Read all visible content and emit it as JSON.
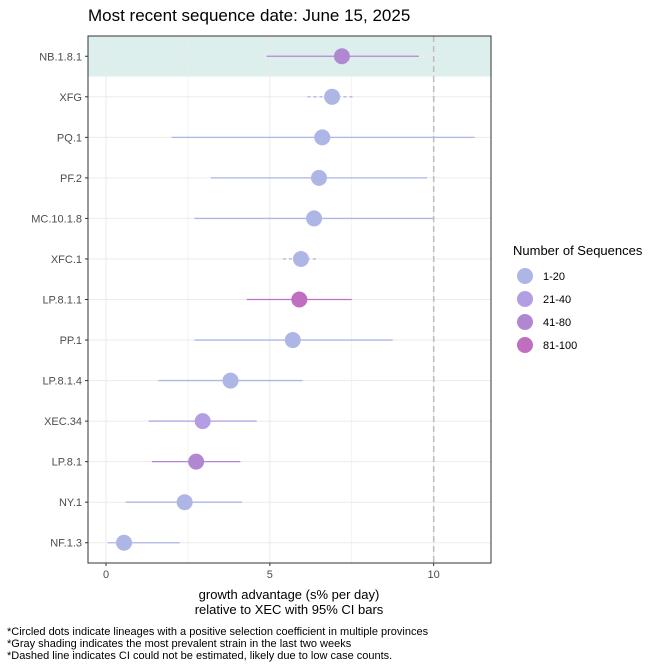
{
  "chart_data": {
    "type": "scatter",
    "title": "Most recent sequence date: June 15, 2025",
    "xlabel": "growth advantage (s% per day)",
    "xlabel2_prefix": "relative to",
    "reference_strain": "XEC",
    "xlabel2_suffix": "with 95% CI bars",
    "xlim": [
      -0.55,
      11.75
    ],
    "xticks": [
      0,
      5,
      10
    ],
    "reference_line_x": 10,
    "highlighted_lineage": "NB.1.8.1",
    "lineages": [
      {
        "name": "NB.1.8.1",
        "value": 7.2,
        "ci_low": 4.9,
        "ci_high": 9.55,
        "group": "41-80",
        "ci_estimated": true
      },
      {
        "name": "XFG",
        "value": 6.9,
        "ci_low": 6.15,
        "ci_high": 7.55,
        "group": "1-20",
        "ci_estimated": false
      },
      {
        "name": "PQ.1",
        "value": 6.6,
        "ci_low": 2.0,
        "ci_high": 11.25,
        "group": "1-20",
        "ci_estimated": true
      },
      {
        "name": "PF.2",
        "value": 6.5,
        "ci_low": 3.2,
        "ci_high": 9.8,
        "group": "1-20",
        "ci_estimated": true
      },
      {
        "name": "MC.10.1.8",
        "value": 6.35,
        "ci_low": 2.7,
        "ci_high": 10.0,
        "group": "1-20",
        "ci_estimated": true
      },
      {
        "name": "XFC.1",
        "value": 5.95,
        "ci_low": 5.4,
        "ci_high": 6.45,
        "group": "1-20",
        "ci_estimated": false
      },
      {
        "name": "LP.8.1.1",
        "value": 5.9,
        "ci_low": 4.3,
        "ci_high": 7.5,
        "group": "81-100",
        "ci_estimated": true
      },
      {
        "name": "PP.1",
        "value": 5.7,
        "ci_low": 2.7,
        "ci_high": 8.75,
        "group": "1-20",
        "ci_estimated": true
      },
      {
        "name": "LP.8.1.4",
        "value": 3.8,
        "ci_low": 1.6,
        "ci_high": 6.0,
        "group": "1-20",
        "ci_estimated": true
      },
      {
        "name": "XEC.34",
        "value": 2.95,
        "ci_low": 1.3,
        "ci_high": 4.6,
        "group": "21-40",
        "ci_estimated": true
      },
      {
        "name": "LP.8.1",
        "value": 2.75,
        "ci_low": 1.4,
        "ci_high": 4.1,
        "group": "41-80",
        "ci_estimated": true
      },
      {
        "name": "NY.1",
        "value": 2.4,
        "ci_low": 0.6,
        "ci_high": 4.15,
        "group": "1-20",
        "ci_estimated": true
      },
      {
        "name": "NF.1.3",
        "value": 0.55,
        "ci_low": 0.05,
        "ci_high": 2.25,
        "group": "1-20",
        "ci_estimated": true
      }
    ],
    "legend": {
      "title": "Number of Sequences",
      "placement": "right",
      "items": [
        {
          "label": "1-20",
          "color": "#aeb6e6"
        },
        {
          "label": "21-40",
          "color": "#b39ee3"
        },
        {
          "label": "41-80",
          "color": "#b088d2"
        },
        {
          "label": "81-100",
          "color": "#c06fc0"
        }
      ]
    },
    "colors": {
      "highlight": "#dcefec",
      "grid": "#ebebeb",
      "reference_line": "#bdbdbd"
    },
    "grid": true
  },
  "footnotes": [
    "*Circled dots indicate lineages with a positive selection coefficient in multiple provinces",
    "*Gray shading indicates the most prevalent strain in the last two weeks",
    "*Dashed line indicates CI could not be estimated, likely due to low case counts."
  ]
}
